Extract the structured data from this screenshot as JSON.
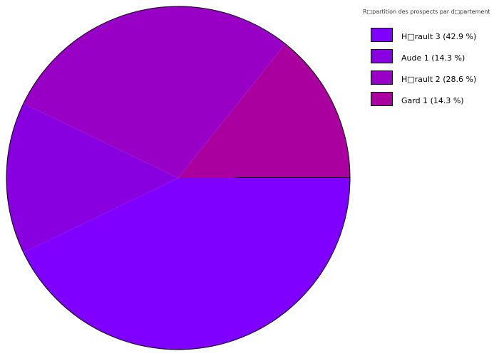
{
  "chart_data": {
    "type": "pie",
    "title": "R□partition des prospects par d□partement",
    "slices": [
      {
        "label": "H□rault 3 (42.9 %)",
        "value": 3,
        "percent": 42.9,
        "color": "#7f00ff"
      },
      {
        "label": "Aude 1 (14.3 %)",
        "value": 1,
        "percent": 14.3,
        "color": "#8900e0"
      },
      {
        "label": "H□rault 2 (28.6 %)",
        "value": 2,
        "percent": 28.6,
        "color": "#9900c6"
      },
      {
        "label": "Gard 1 (14.3 %)",
        "value": 1,
        "percent": 14.3,
        "color": "#aa00a0"
      }
    ],
    "start_angle": "3 o'clock",
    "direction": "clockwise",
    "legend_placement": "top-right"
  }
}
